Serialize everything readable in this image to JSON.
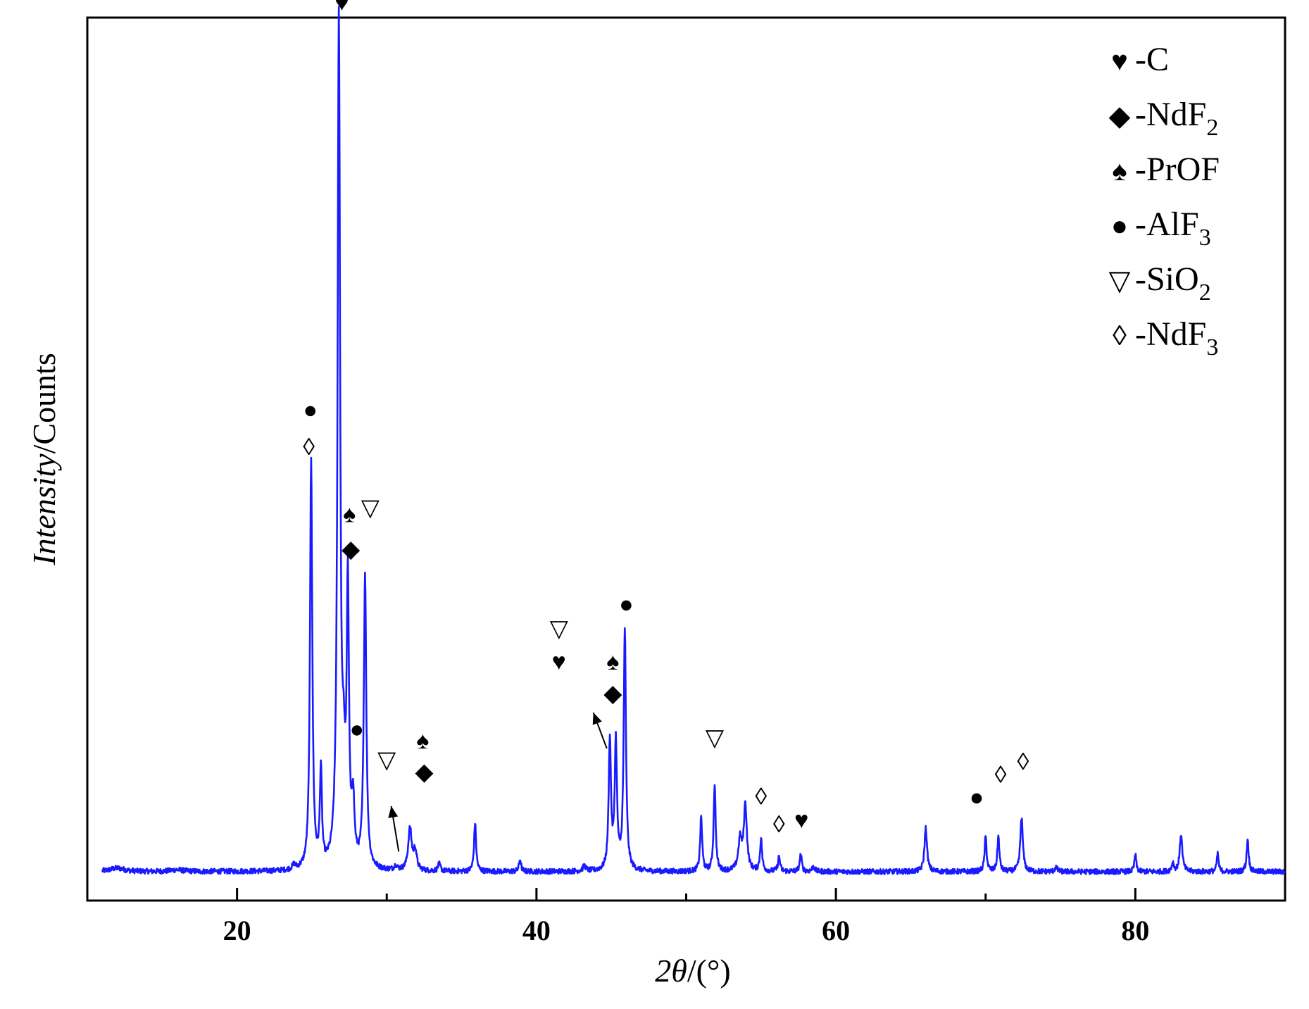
{
  "chart_data": {
    "type": "line",
    "title": "",
    "xlabel": {
      "italic": "2θ",
      "rest": "/(°)"
    },
    "ylabel": {
      "italic": "Intensity",
      "rest": "/Counts"
    },
    "xlim": [
      10,
      90
    ],
    "ylim": [
      -10,
      1000
    ],
    "y_ticks_shown": false,
    "x_ticks": [
      20,
      40,
      60,
      80
    ],
    "x_minor_ticks": [
      30,
      50,
      70
    ],
    "legend_placement": "top-right",
    "series": [
      {
        "color": "#1a1aff",
        "baseline": 23,
        "peaks": [
          {
            "x": 12.0,
            "h": 4,
            "w": 0.6
          },
          {
            "x": 16.0,
            "h": 2,
            "w": 0.5
          },
          {
            "x": 23.8,
            "h": 5,
            "w": 0.12
          },
          {
            "x": 24.95,
            "h": 470,
            "w": 0.09
          },
          {
            "x": 25.6,
            "h": 110,
            "w": 0.08
          },
          {
            "x": 26.8,
            "h": 970,
            "w": 0.1
          },
          {
            "x": 27.12,
            "h": 85,
            "w": 0.12
          },
          {
            "x": 27.4,
            "h": 310,
            "w": 0.09
          },
          {
            "x": 27.75,
            "h": 70,
            "w": 0.1
          },
          {
            "x": 28.55,
            "h": 335,
            "w": 0.1
          },
          {
            "x": 30.6,
            "h": 5,
            "w": 0.12
          },
          {
            "x": 31.55,
            "h": 48,
            "w": 0.14
          },
          {
            "x": 31.9,
            "h": 22,
            "w": 0.12
          },
          {
            "x": 33.5,
            "h": 8,
            "w": 0.1
          },
          {
            "x": 35.9,
            "h": 56,
            "w": 0.08
          },
          {
            "x": 38.9,
            "h": 14,
            "w": 0.08
          },
          {
            "x": 43.2,
            "h": 6,
            "w": 0.12
          },
          {
            "x": 44.9,
            "h": 150,
            "w": 0.09
          },
          {
            "x": 45.3,
            "h": 145,
            "w": 0.09
          },
          {
            "x": 45.9,
            "h": 275,
            "w": 0.09
          },
          {
            "x": 51.0,
            "h": 62,
            "w": 0.08
          },
          {
            "x": 51.9,
            "h": 100,
            "w": 0.08
          },
          {
            "x": 53.6,
            "h": 35,
            "w": 0.14
          },
          {
            "x": 53.95,
            "h": 75,
            "w": 0.12
          },
          {
            "x": 55.0,
            "h": 37,
            "w": 0.08
          },
          {
            "x": 56.2,
            "h": 17,
            "w": 0.08
          },
          {
            "x": 57.65,
            "h": 20,
            "w": 0.08
          },
          {
            "x": 58.5,
            "h": 6,
            "w": 0.1
          },
          {
            "x": 66.0,
            "h": 50,
            "w": 0.1
          },
          {
            "x": 70.0,
            "h": 40,
            "w": 0.08
          },
          {
            "x": 70.85,
            "h": 40,
            "w": 0.08
          },
          {
            "x": 72.4,
            "h": 62,
            "w": 0.1
          },
          {
            "x": 74.7,
            "h": 5,
            "w": 0.1
          },
          {
            "x": 80.0,
            "h": 20,
            "w": 0.07
          },
          {
            "x": 82.5,
            "h": 10,
            "w": 0.08
          },
          {
            "x": 83.05,
            "h": 43,
            "w": 0.1
          },
          {
            "x": 85.5,
            "h": 21,
            "w": 0.07
          },
          {
            "x": 87.5,
            "h": 37,
            "w": 0.08
          }
        ]
      }
    ],
    "legend": [
      {
        "symbol": "♥",
        "name": "-C",
        "sub": ""
      },
      {
        "symbol": "◆",
        "name": "-NdF",
        "sub": "2"
      },
      {
        "symbol": "♠",
        "name": "-PrOF",
        "sub": ""
      },
      {
        "symbol": "●",
        "name": "-AlF",
        "sub": "3"
      },
      {
        "symbol": "▽",
        "name": "-SiO",
        "sub": "2"
      },
      {
        "symbol": "◊",
        "name": "-NdF",
        "sub": "3"
      }
    ],
    "peak_markers": [
      {
        "symbol": "♥",
        "x": 27.0,
        "y": 1008
      },
      {
        "symbol": "●",
        "x": 24.9,
        "y": 542
      },
      {
        "symbol": "◊",
        "x": 24.8,
        "y": 500
      },
      {
        "symbol": "♠",
        "x": 27.5,
        "y": 423
      },
      {
        "symbol": "▽",
        "x": 28.9,
        "y": 430
      },
      {
        "symbol": "◆",
        "x": 27.6,
        "y": 383
      },
      {
        "symbol": "●",
        "x": 28.0,
        "y": 177
      },
      {
        "symbol": "♠",
        "x": 32.4,
        "y": 164
      },
      {
        "symbol": "◆",
        "x": 32.5,
        "y": 128
      },
      {
        "symbol": "▽",
        "x": 30.0,
        "y": 142
      },
      {
        "symbol": "▽",
        "x": 41.5,
        "y": 292
      },
      {
        "symbol": "♥",
        "x": 41.5,
        "y": 254
      },
      {
        "symbol": "♠",
        "x": 45.1,
        "y": 254
      },
      {
        "symbol": "◆",
        "x": 45.1,
        "y": 218
      },
      {
        "symbol": "●",
        "x": 46.0,
        "y": 320
      },
      {
        "symbol": "▽",
        "x": 51.9,
        "y": 167
      },
      {
        "symbol": "◊",
        "x": 55.0,
        "y": 100
      },
      {
        "symbol": "◊",
        "x": 56.2,
        "y": 68
      },
      {
        "symbol": "♥",
        "x": 57.7,
        "y": 73
      },
      {
        "symbol": "●",
        "x": 69.4,
        "y": 99
      },
      {
        "symbol": "◊",
        "x": 71.0,
        "y": 125
      },
      {
        "symbol": "◊",
        "x": 72.5,
        "y": 140
      }
    ],
    "arrows": [
      {
        "from": [
          30.8,
          46
        ],
        "to": [
          30.3,
          98
        ]
      },
      {
        "from": [
          44.7,
          164
        ],
        "to": [
          43.8,
          205
        ]
      }
    ]
  }
}
